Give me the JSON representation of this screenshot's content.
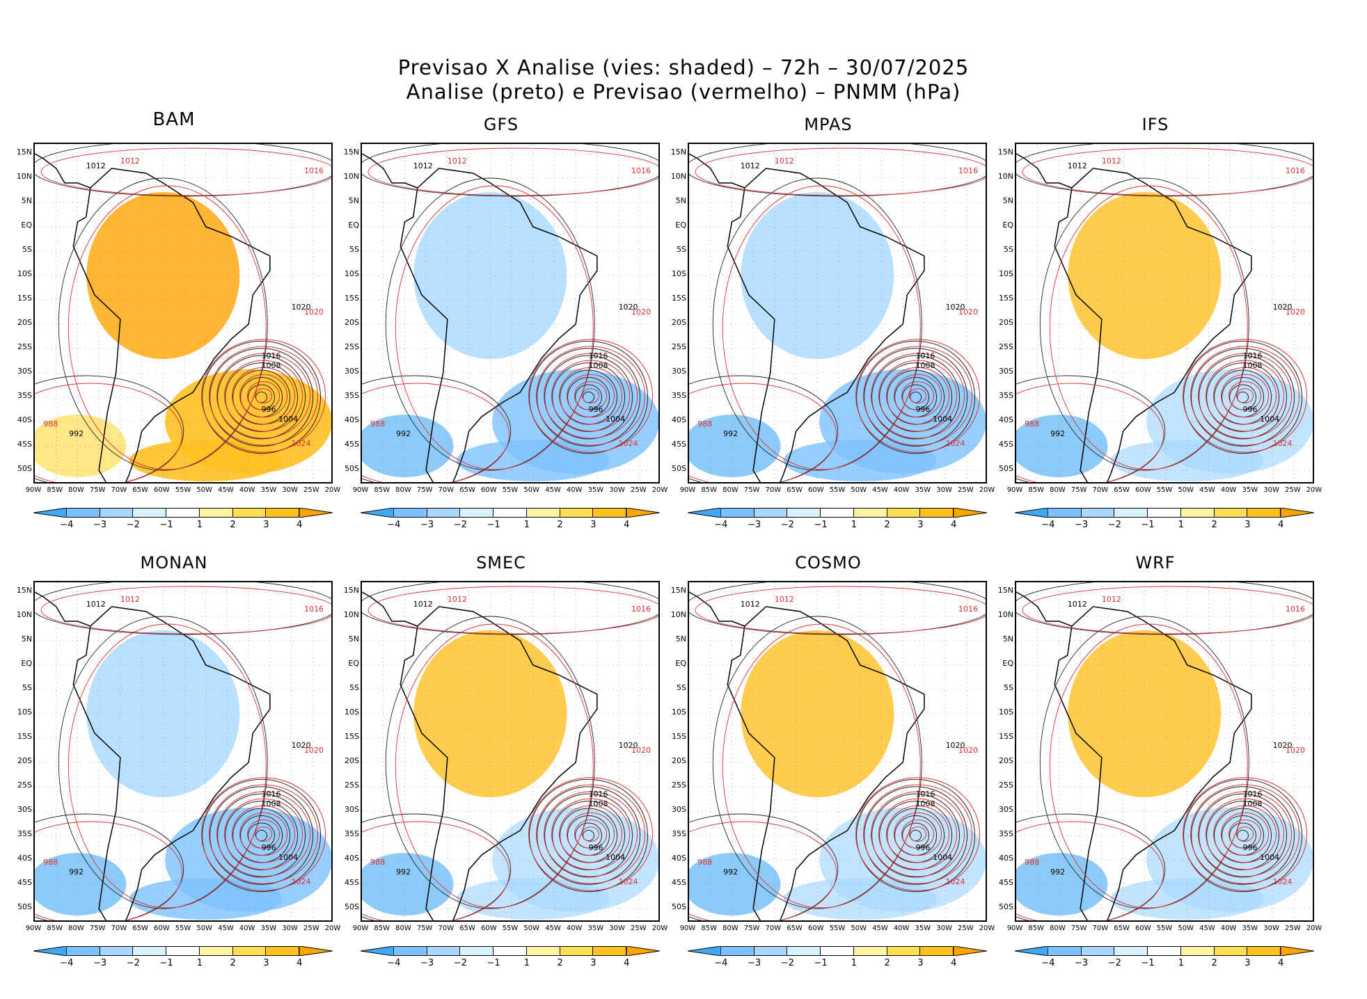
{
  "title": {
    "line1": "Previsao X Analise (vies: shaded) – 72h – 30/07/2025",
    "line2": "Analise (preto) e Previsao (vermelho) – PNMM (hPa)"
  },
  "panels": [
    {
      "name": "BAM",
      "bias": "warm"
    },
    {
      "name": "GFS",
      "bias": "cool"
    },
    {
      "name": "MPAS",
      "bias": "cool"
    },
    {
      "name": "IFS",
      "bias": "mixed"
    },
    {
      "name": "MONAN",
      "bias": "cool"
    },
    {
      "name": "SMEC",
      "bias": "mixed"
    },
    {
      "name": "COSMO",
      "bias": "mixed"
    },
    {
      "name": "WRF",
      "bias": "mixed"
    }
  ],
  "lat_labels": [
    "15N",
    "10N",
    "5N",
    "EQ",
    "5S",
    "10S",
    "15S",
    "20S",
    "25S",
    "30S",
    "35S",
    "40S",
    "45S",
    "50S"
  ],
  "lon_labels": [
    "90W",
    "85W",
    "80W",
    "75W",
    "70W",
    "65W",
    "60W",
    "55W",
    "50W",
    "45W",
    "40W",
    "35W",
    "30W",
    "25W",
    "20W"
  ],
  "colorbar": {
    "labels": [
      "−4",
      "−3",
      "−2",
      "−1",
      "1",
      "2",
      "3",
      "4"
    ],
    "colors": [
      "#3fa9f5",
      "#7cc2ff",
      "#a8d8ff",
      "#d6f1ff",
      "#ffffff",
      "#fff5a0",
      "#ffdd55",
      "#ffc021",
      "#ffa500"
    ]
  },
  "isobar_labels": {
    "analysis": [
      "1012",
      "1016",
      "1020",
      "1008",
      "996",
      "1004",
      "992"
    ],
    "forecast": [
      "1012",
      "1016",
      "1020",
      "1024",
      "988"
    ]
  }
}
